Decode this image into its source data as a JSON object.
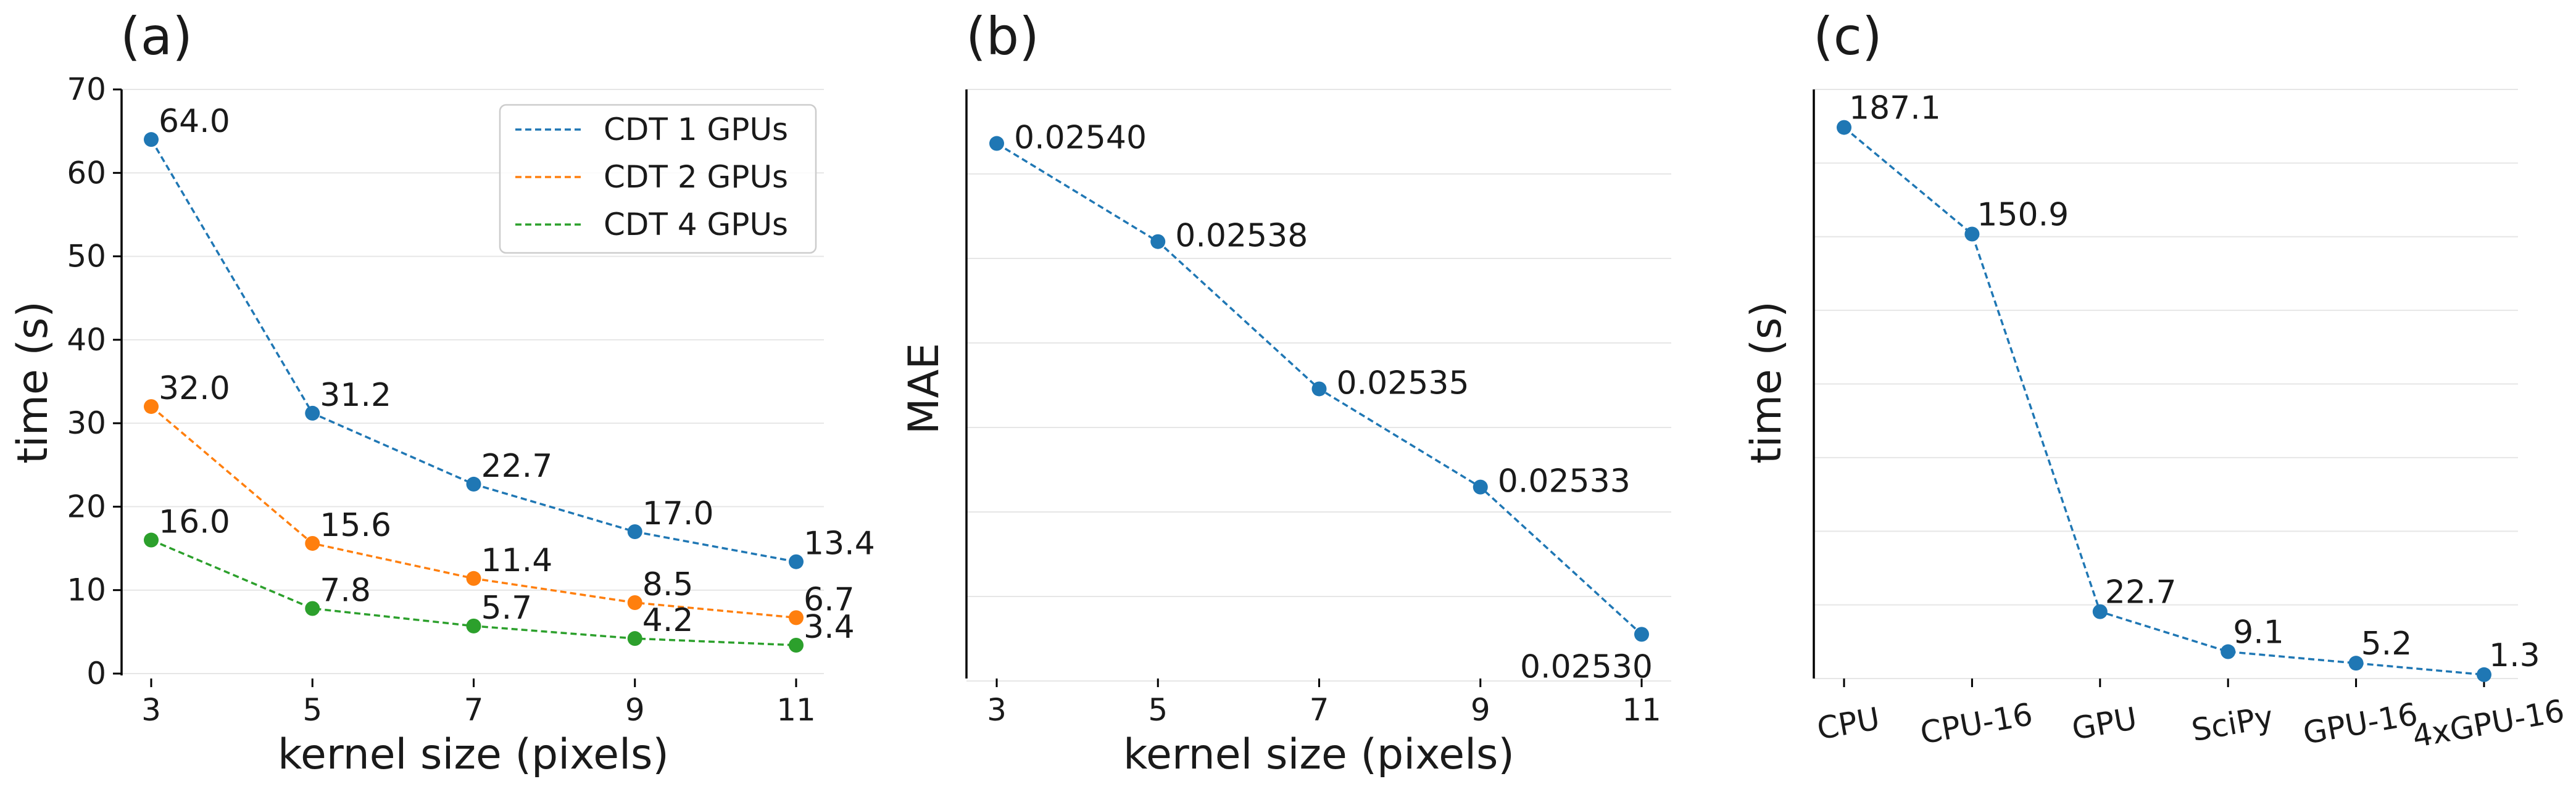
{
  "colors": {
    "blue": "#1f77b4",
    "orange": "#ff7f0e",
    "green": "#2ca02c"
  },
  "chart_data": [
    {
      "panel": "(a)",
      "type": "line",
      "x": [
        3,
        5,
        7,
        9,
        11
      ],
      "x_ticks": [
        "3",
        "5",
        "7",
        "9",
        "11"
      ],
      "xlabel": "kernel size (pixels)",
      "ylabel": "time (s)",
      "ylim": [
        0,
        70
      ],
      "y_ticks": [
        "0",
        "10",
        "20",
        "30",
        "40",
        "50",
        "60",
        "70"
      ],
      "grid": true,
      "legend_position": "top-right",
      "series": [
        {
          "name": "CDT 1 GPUs",
          "color": "#1f77b4",
          "values": [
            64.0,
            31.2,
            22.7,
            17.0,
            13.4
          ],
          "labels": [
            "64.0",
            "31.2",
            "22.7",
            "17.0",
            "13.4"
          ]
        },
        {
          "name": "CDT 2 GPUs",
          "color": "#ff7f0e",
          "values": [
            32.0,
            15.6,
            11.4,
            8.5,
            6.7
          ],
          "labels": [
            "32.0",
            "15.6",
            "11.4",
            "8.5",
            "6.7"
          ]
        },
        {
          "name": "CDT 4 GPUs",
          "color": "#2ca02c",
          "values": [
            16.0,
            7.8,
            5.7,
            4.2,
            3.4
          ],
          "labels": [
            "16.0",
            "7.8",
            "5.7",
            "4.2",
            "3.4"
          ]
        }
      ]
    },
    {
      "panel": "(b)",
      "type": "line",
      "x": [
        3,
        5,
        7,
        9,
        11
      ],
      "x_ticks": [
        "3",
        "5",
        "7",
        "9",
        "11"
      ],
      "xlabel": "kernel size (pixels)",
      "ylabel": "MAE",
      "ylim": [
        0.025291,
        0.025411
      ],
      "grid": true,
      "series": [
        {
          "color": "#1f77b4",
          "values": [
            0.0254,
            0.02538,
            0.02535,
            0.02533,
            0.0253
          ],
          "labels": [
            "0.02540",
            "0.02538",
            "0.02535",
            "0.02533",
            "0.02530"
          ]
        }
      ]
    },
    {
      "panel": "(c)",
      "type": "line",
      "categories": [
        "CPU",
        "CPU-16",
        "GPU",
        "SciPy",
        "GPU-16",
        "4xGPU-16"
      ],
      "xlabel": "",
      "ylabel": "time (s)",
      "ylim": [
        0,
        200
      ],
      "grid": true,
      "series": [
        {
          "color": "#1f77b4",
          "values": [
            187.1,
            150.9,
            22.7,
            9.1,
            5.2,
            1.3
          ],
          "labels": [
            "187.1",
            "150.9",
            "22.7",
            "9.1",
            "5.2",
            "1.3"
          ]
        }
      ]
    }
  ]
}
